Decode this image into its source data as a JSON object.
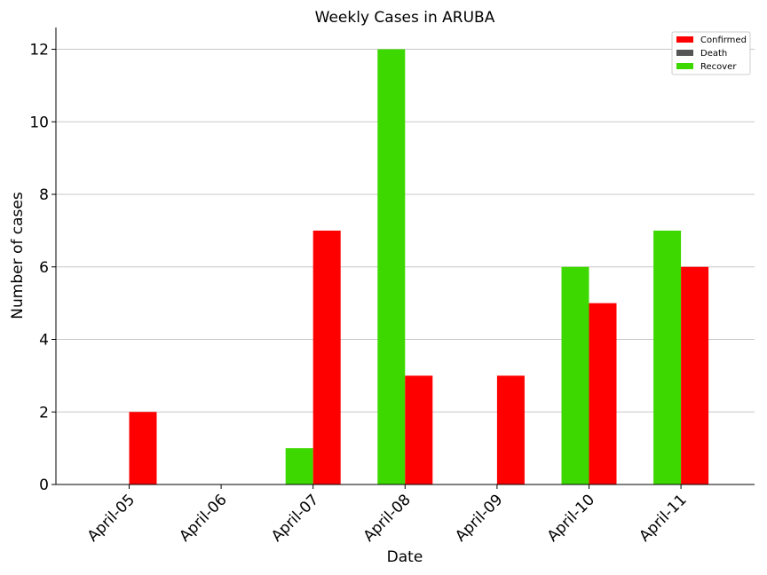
{
  "chart_data": {
    "type": "bar",
    "title": "Weekly Cases in ARUBA",
    "xlabel": "Date",
    "ylabel": "Number of cases",
    "categories": [
      "April-05",
      "April-06",
      "April-07",
      "April-08",
      "April-09",
      "April-10",
      "April-11"
    ],
    "series": [
      {
        "name": "Confirmed",
        "color": "#ff0000",
        "values": [
          2,
          0,
          7,
          3,
          3,
          5,
          6
        ]
      },
      {
        "name": "Death",
        "color": "#555555",
        "values": [
          0,
          0,
          0,
          0,
          0,
          0,
          0
        ]
      },
      {
        "name": "Recover",
        "color": "#3dd800",
        "values": [
          0,
          0,
          1,
          12,
          0,
          6,
          7
        ]
      }
    ],
    "ylim": [
      0,
      12.6
    ],
    "yticks": [
      0,
      2,
      4,
      6,
      8,
      10,
      12
    ],
    "grid": "horizontal",
    "legend": "top-right"
  }
}
